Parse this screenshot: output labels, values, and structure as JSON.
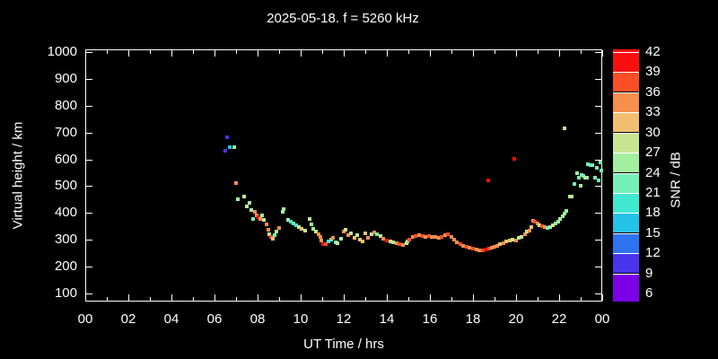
{
  "title": "2025-05-18. f = 5260 kHz",
  "axes": {
    "x": {
      "label": "UT Time / hrs",
      "tick_hours": [
        0,
        2,
        4,
        6,
        8,
        10,
        12,
        14,
        16,
        18,
        20,
        22,
        24
      ],
      "tick_labels": [
        "00",
        "02",
        "04",
        "06",
        "08",
        "10",
        "12",
        "14",
        "16",
        "18",
        "20",
        "22",
        "00"
      ],
      "minor_tick_every_hours": 1,
      "range_hours": [
        0,
        24
      ]
    },
    "y": {
      "label": "Virtual height / km",
      "tick_values": [
        100,
        200,
        300,
        400,
        500,
        600,
        700,
        800,
        900,
        1000
      ],
      "tick_labels": [
        "100",
        "200",
        "300",
        "400",
        "500",
        "600",
        "700",
        "800",
        "900",
        "1000"
      ],
      "range_km": [
        70,
        1010
      ]
    }
  },
  "colorbar": {
    "label": "SNR / dB",
    "tick_values": [
      6,
      9,
      12,
      15,
      18,
      21,
      24,
      27,
      30,
      33,
      36,
      39,
      42
    ],
    "tick_labels": [
      "6",
      "9",
      "12",
      "15",
      "18",
      "21",
      "24",
      "27",
      "30",
      "33",
      "36",
      "39",
      "42"
    ],
    "segment_colors_bottom_to_top": [
      "#7b00e8",
      "#4834ec",
      "#2e73f0",
      "#25c2e8",
      "#40e8d0",
      "#75efb8",
      "#a2efa0",
      "#c9e591",
      "#f0c070",
      "#f68e4e",
      "#fa4f26",
      "#fa0f0f"
    ]
  },
  "colors": {
    "background": "#000000",
    "foreground": "#ffffff"
  },
  "chart_data": {
    "type": "scatter",
    "title": "2025-05-18. f = 5260 kHz",
    "xlabel": "UT Time / hrs",
    "ylabel": "Virtual height / km",
    "color_axis_label": "SNR / dB",
    "xlim": [
      0,
      24
    ],
    "ylim": [
      70,
      1010
    ],
    "snr_range": [
      6,
      42
    ],
    "grid": false,
    "points_format": [
      "time_hours",
      "virtual_height_km",
      "snr_db"
    ],
    "points": [
      [
        6.5,
        633,
        10
      ],
      [
        6.58,
        683,
        10
      ],
      [
        6.72,
        647,
        16
      ],
      [
        6.9,
        647,
        25
      ],
      [
        7.0,
        513,
        34
      ],
      [
        7.08,
        450,
        25
      ],
      [
        7.38,
        460,
        28
      ],
      [
        7.5,
        423,
        28
      ],
      [
        7.62,
        437,
        25
      ],
      [
        7.7,
        410,
        25
      ],
      [
        7.8,
        377,
        22
      ],
      [
        7.88,
        403,
        34
      ],
      [
        7.95,
        390,
        34
      ],
      [
        8.05,
        383,
        40
      ],
      [
        8.12,
        377,
        34
      ],
      [
        8.2,
        390,
        25
      ],
      [
        8.3,
        373,
        28
      ],
      [
        8.4,
        357,
        34
      ],
      [
        8.5,
        337,
        34
      ],
      [
        8.55,
        320,
        28
      ],
      [
        8.62,
        310,
        37
      ],
      [
        8.7,
        303,
        31
      ],
      [
        8.78,
        317,
        22
      ],
      [
        8.88,
        330,
        25
      ],
      [
        9.0,
        343,
        34
      ],
      [
        9.15,
        403,
        25
      ],
      [
        9.22,
        413,
        25
      ],
      [
        9.4,
        373,
        25
      ],
      [
        9.55,
        367,
        19
      ],
      [
        9.65,
        360,
        22
      ],
      [
        9.78,
        353,
        19
      ],
      [
        9.9,
        347,
        28
      ],
      [
        10.05,
        340,
        31
      ],
      [
        10.2,
        333,
        28
      ],
      [
        10.4,
        377,
        28
      ],
      [
        10.5,
        357,
        25
      ],
      [
        10.6,
        340,
        25
      ],
      [
        10.72,
        330,
        28
      ],
      [
        10.82,
        320,
        34
      ],
      [
        10.9,
        310,
        34
      ],
      [
        10.95,
        297,
        34
      ],
      [
        11.05,
        283,
        40
      ],
      [
        11.18,
        283,
        37
      ],
      [
        11.3,
        293,
        19
      ],
      [
        11.4,
        300,
        22
      ],
      [
        11.5,
        307,
        34
      ],
      [
        11.62,
        290,
        22
      ],
      [
        11.7,
        287,
        28
      ],
      [
        11.88,
        303,
        25
      ],
      [
        12.0,
        330,
        34
      ],
      [
        12.08,
        337,
        28
      ],
      [
        12.2,
        317,
        34
      ],
      [
        12.32,
        323,
        28
      ],
      [
        12.5,
        307,
        31
      ],
      [
        12.62,
        317,
        28
      ],
      [
        12.75,
        300,
        31
      ],
      [
        12.88,
        293,
        31
      ],
      [
        13.0,
        323,
        31
      ],
      [
        13.12,
        307,
        34
      ],
      [
        13.3,
        320,
        28
      ],
      [
        13.42,
        327,
        34
      ],
      [
        13.55,
        320,
        22
      ],
      [
        13.7,
        313,
        28
      ],
      [
        13.85,
        303,
        34
      ],
      [
        14.0,
        297,
        40
      ],
      [
        14.15,
        293,
        28
      ],
      [
        14.3,
        290,
        25
      ],
      [
        14.45,
        287,
        34
      ],
      [
        14.6,
        283,
        37
      ],
      [
        14.75,
        280,
        34
      ],
      [
        14.9,
        287,
        28
      ],
      [
        14.95,
        293,
        25
      ],
      [
        15.05,
        300,
        37
      ],
      [
        15.2,
        310,
        34
      ],
      [
        15.35,
        313,
        37
      ],
      [
        15.5,
        317,
        34
      ],
      [
        15.65,
        313,
        37
      ],
      [
        15.8,
        310,
        34
      ],
      [
        15.95,
        313,
        37
      ],
      [
        16.1,
        310,
        34
      ],
      [
        16.25,
        310,
        34
      ],
      [
        16.4,
        307,
        34
      ],
      [
        16.55,
        312,
        37
      ],
      [
        16.7,
        317,
        34
      ],
      [
        16.85,
        320,
        37
      ],
      [
        17.0,
        310,
        34
      ],
      [
        17.12,
        300,
        34
      ],
      [
        17.25,
        290,
        34
      ],
      [
        17.4,
        283,
        37
      ],
      [
        17.55,
        277,
        34
      ],
      [
        17.7,
        273,
        37
      ],
      [
        17.85,
        270,
        34
      ],
      [
        18.0,
        267,
        37
      ],
      [
        18.15,
        263,
        34
      ],
      [
        18.3,
        260,
        34
      ],
      [
        18.45,
        260,
        37
      ],
      [
        18.6,
        263,
        40
      ],
      [
        18.75,
        267,
        37
      ],
      [
        18.88,
        270,
        34
      ],
      [
        18.7,
        520,
        40
      ],
      [
        19.9,
        603,
        40
      ],
      [
        22.25,
        717,
        28
      ],
      [
        19.0,
        273,
        34
      ],
      [
        19.12,
        277,
        34
      ],
      [
        19.25,
        283,
        31
      ],
      [
        19.4,
        287,
        34
      ],
      [
        19.55,
        293,
        31
      ],
      [
        19.7,
        297,
        31
      ],
      [
        19.85,
        300,
        28
      ],
      [
        20.0,
        297,
        34
      ],
      [
        20.12,
        307,
        25
      ],
      [
        20.25,
        310,
        28
      ],
      [
        20.4,
        320,
        34
      ],
      [
        20.5,
        330,
        28
      ],
      [
        20.62,
        333,
        34
      ],
      [
        20.7,
        347,
        31
      ],
      [
        20.78,
        370,
        34
      ],
      [
        20.88,
        367,
        37
      ],
      [
        21.0,
        360,
        34
      ],
      [
        21.1,
        353,
        28
      ],
      [
        21.2,
        350,
        37
      ],
      [
        21.32,
        347,
        34
      ],
      [
        21.45,
        343,
        22
      ],
      [
        21.58,
        347,
        25
      ],
      [
        21.7,
        353,
        28
      ],
      [
        21.82,
        360,
        25
      ],
      [
        21.95,
        367,
        25
      ],
      [
        22.05,
        377,
        25
      ],
      [
        22.15,
        387,
        25
      ],
      [
        22.25,
        397,
        25
      ],
      [
        22.35,
        407,
        25
      ],
      [
        22.5,
        463,
        25
      ],
      [
        22.6,
        460,
        28
      ],
      [
        22.72,
        507,
        22
      ],
      [
        22.82,
        550,
        25
      ],
      [
        22.9,
        530,
        22
      ],
      [
        23.0,
        500,
        25
      ],
      [
        23.05,
        540,
        22
      ],
      [
        23.12,
        537,
        22
      ],
      [
        23.2,
        530,
        28
      ],
      [
        23.3,
        533,
        25
      ],
      [
        23.35,
        583,
        22
      ],
      [
        23.45,
        580,
        22
      ],
      [
        23.55,
        577,
        22
      ],
      [
        23.65,
        530,
        22
      ],
      [
        23.75,
        570,
        22
      ],
      [
        23.85,
        523,
        22
      ],
      [
        23.92,
        587,
        22
      ],
      [
        23.97,
        560,
        22
      ]
    ]
  }
}
